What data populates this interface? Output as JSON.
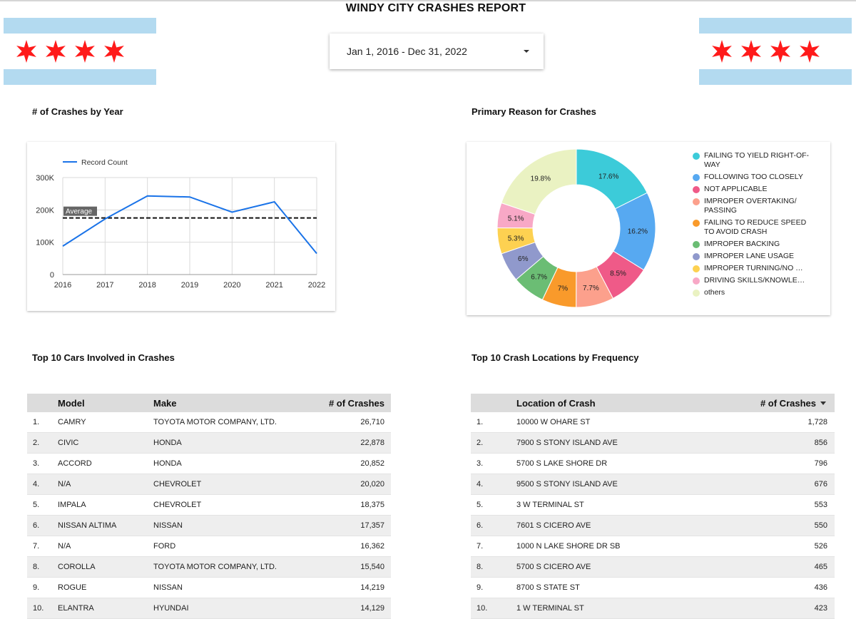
{
  "report": {
    "title": "WINDY CITY CRASHES REPORT"
  },
  "date_range": {
    "label": "Jan 1, 2016 - Dec 31, 2022"
  },
  "colors": {
    "flag_blue": "#b3daf0",
    "flag_star": "#ff1a1a",
    "line": "#1a73e8"
  },
  "sections": {
    "crashes_by_year": "# of Crashes by Year",
    "primary_reason": "Primary Reason for Crashes",
    "top_cars": "Top 10 Cars Involved in Crashes",
    "top_locations": "Top 10 Crash Locations by Frequency"
  },
  "chart_data": [
    {
      "type": "line",
      "x": [
        "2016",
        "2017",
        "2018",
        "2019",
        "2020",
        "2021",
        "2022"
      ],
      "series": [
        {
          "name": "Record Count",
          "values": [
            88000,
            172000,
            243000,
            240000,
            193000,
            225000,
            65000
          ]
        }
      ],
      "reference_line": {
        "label": "Average",
        "value": 175000
      },
      "y_ticks": [
        "0",
        "100K",
        "200K",
        "300K"
      ],
      "ylim": [
        0,
        300000
      ],
      "grid": true,
      "legend": "top-left"
    },
    {
      "type": "pie",
      "donut": true,
      "categories": [
        "FAILING TO YIELD RIGHT-OF-WAY",
        "FOLLOWING TOO CLOSELY",
        "NOT APPLICABLE",
        "IMPROPER OVERTAKING/ PASSING",
        "FAILING TO REDUCE SPEED TO AVOID CRASH",
        "IMPROPER BACKING",
        "IMPROPER LANE USAGE",
        "IMPROPER TURNING/NO SI...",
        "DRIVING SKILLS/KNOWLED...",
        "others"
      ],
      "values": [
        17.6,
        16.2,
        8.5,
        7.7,
        7,
        6.7,
        6,
        5.3,
        5.1,
        19.8
      ],
      "value_labels": [
        "17.6%",
        "16.2%",
        "8.5%",
        "7.7%",
        "7%",
        "6.7%",
        "6%",
        "5.3%",
        "5.1%",
        "19.8%"
      ],
      "colors": [
        "#3ccbd9",
        "#57a9f1",
        "#ef5a88",
        "#fca08c",
        "#f99a2b",
        "#6bbd74",
        "#9099cc",
        "#fdd151",
        "#f8a8c6",
        "#eaf2c2"
      ],
      "legend": "right"
    }
  ],
  "cars_table": {
    "headers": {
      "model": "Model",
      "make": "Make",
      "crashes": "# of Crashes"
    },
    "rows": [
      {
        "idx": "1.",
        "model": "CAMRY",
        "make": "TOYOTA MOTOR COMPANY, LTD.",
        "crashes": "26,710"
      },
      {
        "idx": "2.",
        "model": "CIVIC",
        "make": "HONDA",
        "crashes": "22,878"
      },
      {
        "idx": "3.",
        "model": "ACCORD",
        "make": "HONDA",
        "crashes": "20,852"
      },
      {
        "idx": "4.",
        "model": "N/A",
        "make": "CHEVROLET",
        "crashes": "20,020"
      },
      {
        "idx": "5.",
        "model": "IMPALA",
        "make": "CHEVROLET",
        "crashes": "18,375"
      },
      {
        "idx": "6.",
        "model": "NISSAN ALTIMA",
        "make": "NISSAN",
        "crashes": "17,357"
      },
      {
        "idx": "7.",
        "model": "N/A",
        "make": "FORD",
        "crashes": "16,362"
      },
      {
        "idx": "8.",
        "model": "COROLLA",
        "make": "TOYOTA MOTOR COMPANY, LTD.",
        "crashes": "15,540"
      },
      {
        "idx": "9.",
        "model": "ROGUE",
        "make": "NISSAN",
        "crashes": "14,219"
      },
      {
        "idx": "10.",
        "model": "ELANTRA",
        "make": "HYUNDAI",
        "crashes": "14,129"
      }
    ]
  },
  "locations_table": {
    "headers": {
      "location": "Location of Crash",
      "crashes": "# of Crashes"
    },
    "rows": [
      {
        "idx": "1.",
        "location": "10000 W OHARE ST",
        "crashes": "1,728"
      },
      {
        "idx": "2.",
        "location": "7900 S STONY ISLAND AVE",
        "crashes": "856"
      },
      {
        "idx": "3.",
        "location": "5700 S LAKE SHORE DR",
        "crashes": "796"
      },
      {
        "idx": "4.",
        "location": "9500 S STONY ISLAND AVE",
        "crashes": "676"
      },
      {
        "idx": "5.",
        "location": "3 W TERMINAL ST",
        "crashes": "553"
      },
      {
        "idx": "6.",
        "location": "7601 S CICERO AVE",
        "crashes": "550"
      },
      {
        "idx": "7.",
        "location": "1000 N LAKE SHORE DR SB",
        "crashes": "526"
      },
      {
        "idx": "8.",
        "location": "5700 S CICERO AVE",
        "crashes": "465"
      },
      {
        "idx": "9.",
        "location": "8700 S STATE ST",
        "crashes": "436"
      },
      {
        "idx": "10.",
        "location": "1 W TERMINAL ST",
        "crashes": "423"
      }
    ]
  }
}
